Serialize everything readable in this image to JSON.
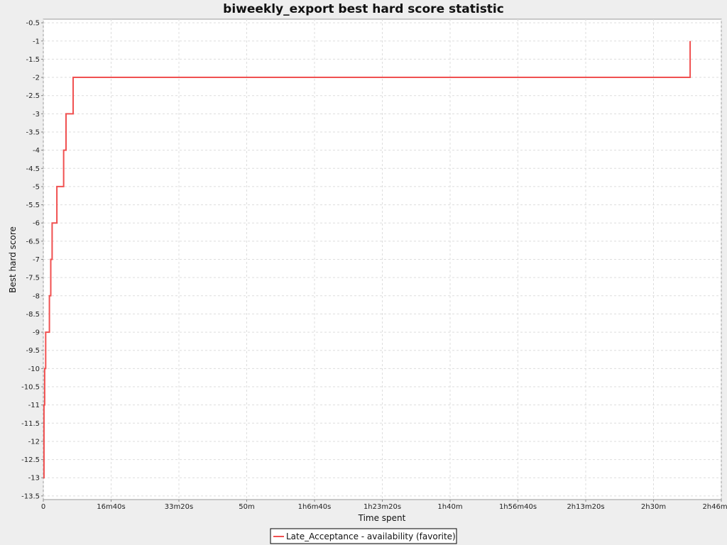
{
  "chart_data": {
    "type": "line",
    "title": "biweekly_export best hard score statistic",
    "xlabel": "Time spent",
    "ylabel": "Best hard score",
    "xlim": [
      0,
      10000
    ],
    "ylim": [
      -13.6,
      -0.4
    ],
    "grid": true,
    "legend_position": "bottom-center",
    "x_ticks": [
      {
        "value": 0,
        "label": "0"
      },
      {
        "value": 1000,
        "label": "16m40s"
      },
      {
        "value": 2000,
        "label": "33m20s"
      },
      {
        "value": 3000,
        "label": "50m"
      },
      {
        "value": 4000,
        "label": "1h6m40s"
      },
      {
        "value": 5000,
        "label": "1h23m20s"
      },
      {
        "value": 6000,
        "label": "1h40m"
      },
      {
        "value": 7000,
        "label": "1h56m40s"
      },
      {
        "value": 8000,
        "label": "2h13m20s"
      },
      {
        "value": 9000,
        "label": "2h30m"
      },
      {
        "value": 10000,
        "label": "2h46m40s"
      }
    ],
    "y_ticks": [
      {
        "value": -0.5,
        "label": "-0.5"
      },
      {
        "value": -1,
        "label": "-1"
      },
      {
        "value": -1.5,
        "label": "-1.5"
      },
      {
        "value": -2,
        "label": "-2"
      },
      {
        "value": -2.5,
        "label": "-2.5"
      },
      {
        "value": -3,
        "label": "-3"
      },
      {
        "value": -3.5,
        "label": "-3.5"
      },
      {
        "value": -4,
        "label": "-4"
      },
      {
        "value": -4.5,
        "label": "-4.5"
      },
      {
        "value": -5,
        "label": "-5"
      },
      {
        "value": -5.5,
        "label": "-5.5"
      },
      {
        "value": -6,
        "label": "-6"
      },
      {
        "value": -6.5,
        "label": "-6.5"
      },
      {
        "value": -7,
        "label": "-7"
      },
      {
        "value": -7.5,
        "label": "-7.5"
      },
      {
        "value": -8,
        "label": "-8"
      },
      {
        "value": -8.5,
        "label": "-8.5"
      },
      {
        "value": -9,
        "label": "-9"
      },
      {
        "value": -9.5,
        "label": "-9.5"
      },
      {
        "value": -10,
        "label": "-10"
      },
      {
        "value": -10.5,
        "label": "-10.5"
      },
      {
        "value": -11,
        "label": "-11"
      },
      {
        "value": -11.5,
        "label": "-11.5"
      },
      {
        "value": -12,
        "label": "-12"
      },
      {
        "value": -12.5,
        "label": "-12.5"
      },
      {
        "value": -13,
        "label": "-13"
      },
      {
        "value": -13.5,
        "label": "-13.5"
      }
    ],
    "series": [
      {
        "name": "Late_Acceptance - availability (favorite)",
        "color": "#f05050",
        "step": true,
        "x": [
          0,
          10,
          20,
          35,
          50,
          90,
          110,
          130,
          200,
          300,
          335,
          440,
          10000
        ],
        "y": [
          -13,
          -11,
          -10,
          -9,
          -9,
          -8,
          -7,
          -6,
          -5,
          -4,
          -3,
          -2,
          -1
        ],
        "x_end": 9540
      }
    ]
  }
}
